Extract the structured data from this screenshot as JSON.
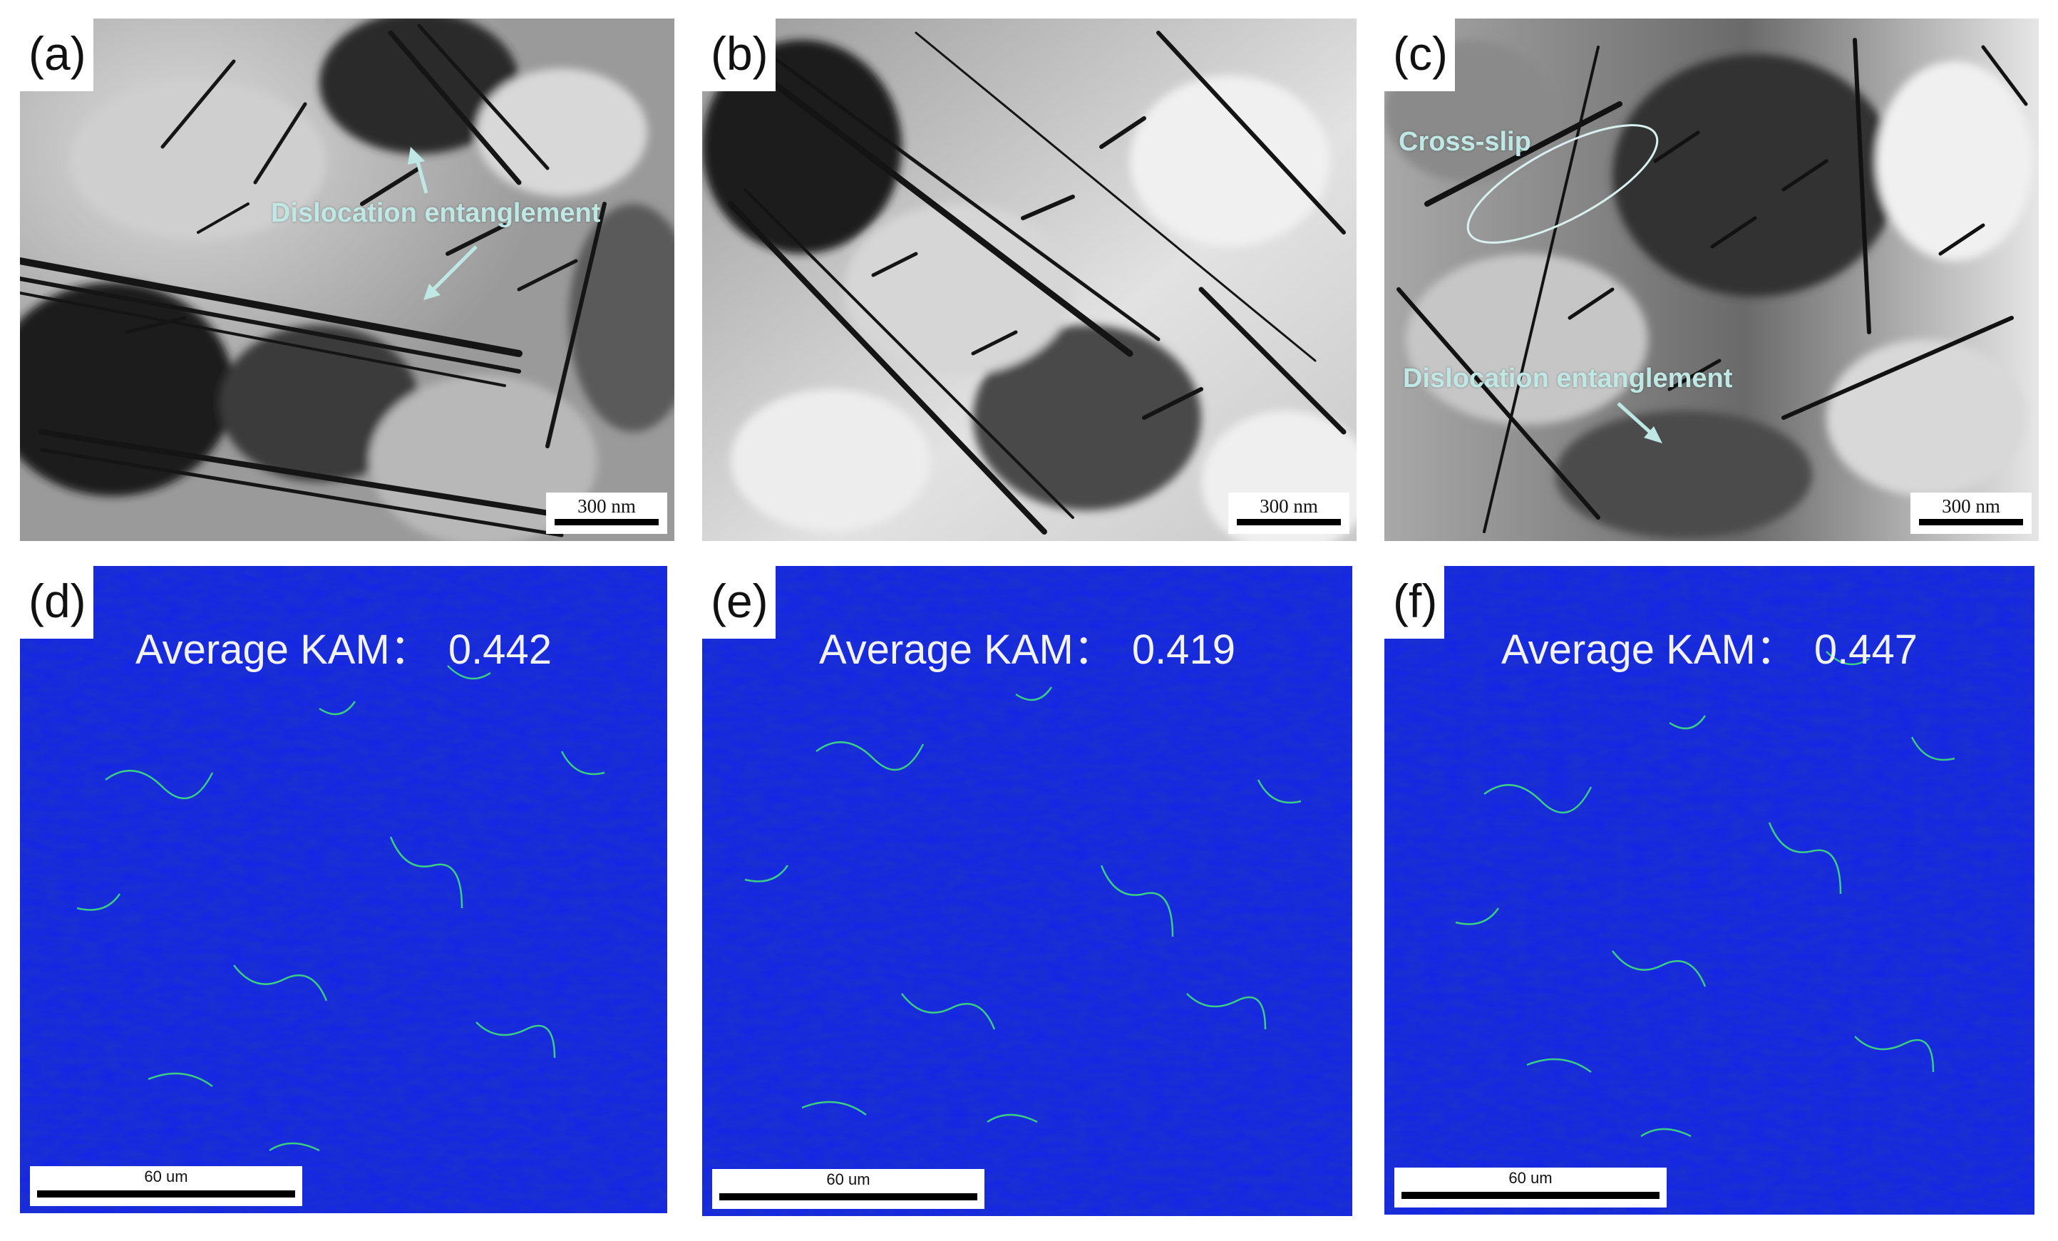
{
  "panels": {
    "a": {
      "label": "(a)",
      "scale_bar": "300  nm",
      "annotation": "Dislocation entanglement"
    },
    "b": {
      "label": "(b)",
      "scale_bar": "300  nm"
    },
    "c": {
      "label": "(c)",
      "scale_bar": "300  nm",
      "annotation_cross_slip": "Cross-slip",
      "annotation_entanglement": "Dislocation entanglement"
    },
    "d": {
      "label": "(d)",
      "kam_label": "Average KAM：",
      "kam_value": "0.442",
      "scale_bar": "60 um"
    },
    "e": {
      "label": "(e)",
      "kam_label": "Average KAM：",
      "kam_value": "0.419",
      "scale_bar": "60 um"
    },
    "f": {
      "label": "(f)",
      "kam_label": "Average KAM：",
      "kam_value": "0.447",
      "scale_bar": "60 um"
    }
  },
  "colors": {
    "kam_base": "#1426e6",
    "kam_highlight": "#3fe07a",
    "annotation": "#bfe8e4"
  }
}
